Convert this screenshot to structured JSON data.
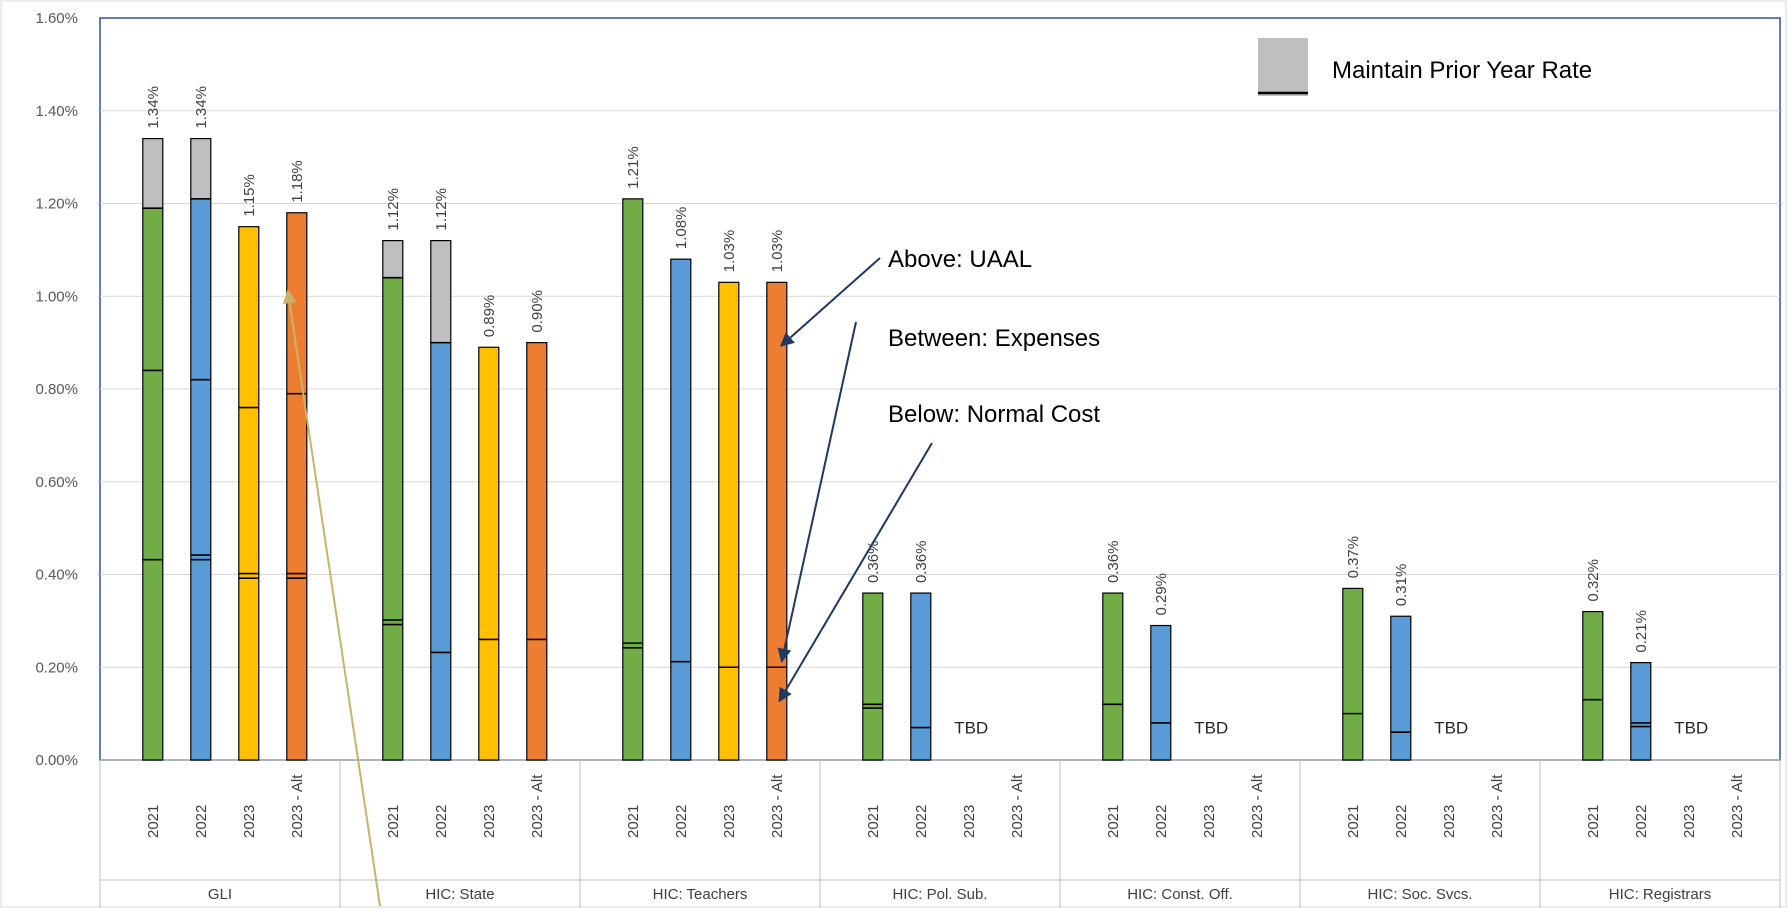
{
  "chart_data": {
    "type": "bar",
    "stacked": true,
    "ylim": [
      0,
      0.016
    ],
    "yticks": [
      "0.00%",
      "0.20%",
      "0.40%",
      "0.60%",
      "0.80%",
      "1.00%",
      "1.20%",
      "1.40%",
      "1.60%"
    ],
    "ytick_values": [
      0,
      0.002,
      0.004,
      0.006,
      0.008,
      0.01,
      0.012,
      0.014,
      0.016
    ],
    "grid": true,
    "legend": {
      "label": "Maintain Prior Year Rate",
      "position": "top-right"
    },
    "colors": {
      "2021": "#70ad47",
      "2022": "#5b9bd5",
      "2023": "#ffc000",
      "2023 - Alt": "#ed7d31",
      "maintain": "#bfbfbf",
      "axis": "#2f5597",
      "arrow": "#1f3864",
      "arrow_gold": "#c9b36a"
    },
    "groups": [
      {
        "name": "GLI",
        "bars": [
          {
            "x": "2021",
            "total": 0.0134,
            "colored_top": 0.0119,
            "lines": [
              0.00432,
              0.0084,
              0.0119
            ],
            "label": "1.34%"
          },
          {
            "x": "2022",
            "total": 0.0134,
            "colored_top": 0.0121,
            "lines": [
              0.00432,
              0.00442,
              0.0082,
              0.0121
            ],
            "label": "1.34%"
          },
          {
            "x": "2023",
            "total": 0.0115,
            "colored_top": 0.0115,
            "lines": [
              0.00392,
              0.00402,
              0.0076
            ],
            "label": "1.15%"
          },
          {
            "x": "2023 - Alt",
            "total": 0.0118,
            "colored_top": 0.0118,
            "lines": [
              0.00392,
              0.00402,
              0.0079
            ],
            "label": "1.18%"
          }
        ]
      },
      {
        "name": "HIC: State",
        "bars": [
          {
            "x": "2021",
            "total": 0.0112,
            "colored_top": 0.0104,
            "lines": [
              0.00292,
              0.00302,
              0.0104
            ],
            "label": "1.12%"
          },
          {
            "x": "2022",
            "total": 0.0112,
            "colored_top": 0.009,
            "lines": [
              0.00232,
              0.009
            ],
            "label": "1.12%"
          },
          {
            "x": "2023",
            "total": 0.0089,
            "colored_top": 0.0089,
            "lines": [
              0.0026
            ],
            "label": "0.89%"
          },
          {
            "x": "2023 - Alt",
            "total": 0.009,
            "colored_top": 0.009,
            "lines": [
              0.0026
            ],
            "label": "0.90%"
          }
        ]
      },
      {
        "name": "HIC: Teachers",
        "bars": [
          {
            "x": "2021",
            "total": 0.0121,
            "colored_top": 0.0121,
            "lines": [
              0.00242,
              0.00252
            ],
            "label": "1.21%"
          },
          {
            "x": "2022",
            "total": 0.0108,
            "colored_top": 0.0108,
            "lines": [
              0.00212
            ],
            "label": "1.08%"
          },
          {
            "x": "2023",
            "total": 0.0103,
            "colored_top": 0.0103,
            "lines": [
              0.002
            ],
            "label": "1.03%"
          },
          {
            "x": "2023 - Alt",
            "total": 0.0103,
            "colored_top": 0.0103,
            "lines": [
              0.002
            ],
            "label": "1.03%"
          }
        ]
      },
      {
        "name": "HIC: Pol. Sub.",
        "bars": [
          {
            "x": "2021",
            "total": 0.0036,
            "colored_top": 0.0036,
            "lines": [
              0.00112,
              0.0012
            ],
            "label": "0.36%"
          },
          {
            "x": "2022",
            "total": 0.0036,
            "colored_top": 0.0036,
            "lines": [
              0.0007
            ],
            "label": "0.36%"
          },
          {
            "x": "2023",
            "total": null,
            "label": ""
          },
          {
            "x": "2023 - Alt",
            "total": null,
            "label": ""
          }
        ],
        "tbd": "TBD"
      },
      {
        "name": "HIC: Const. Off.",
        "bars": [
          {
            "x": "2021",
            "total": 0.0036,
            "colored_top": 0.0036,
            "lines": [
              0.0012
            ],
            "label": "0.36%"
          },
          {
            "x": "2022",
            "total": 0.0029,
            "colored_top": 0.0029,
            "lines": [
              0.0008
            ],
            "label": "0.29%"
          },
          {
            "x": "2023",
            "total": null,
            "label": ""
          },
          {
            "x": "2023 - Alt",
            "total": null,
            "label": ""
          }
        ],
        "tbd": "TBD"
      },
      {
        "name": "HIC: Soc. Svcs.",
        "bars": [
          {
            "x": "2021",
            "total": 0.0037,
            "colored_top": 0.0037,
            "lines": [
              0.001
            ],
            "label": "0.37%"
          },
          {
            "x": "2022",
            "total": 0.0031,
            "colored_top": 0.0031,
            "lines": [
              0.0006
            ],
            "label": "0.31%"
          },
          {
            "x": "2023",
            "total": null,
            "label": ""
          },
          {
            "x": "2023 - Alt",
            "total": null,
            "label": ""
          }
        ],
        "tbd": "TBD"
      },
      {
        "name": "HIC: Registrars",
        "bars": [
          {
            "x": "2021",
            "total": 0.0032,
            "colored_top": 0.0032,
            "lines": [
              0.0013
            ],
            "label": "0.32%"
          },
          {
            "x": "2022",
            "total": 0.0021,
            "colored_top": 0.0021,
            "lines": [
              0.00072,
              0.0008
            ],
            "label": "0.21%"
          },
          {
            "x": "2023",
            "total": null,
            "label": ""
          },
          {
            "x": "2023 - Alt",
            "total": null,
            "label": ""
          }
        ],
        "tbd": "TBD"
      }
    ],
    "annotations": [
      "Above: UAAL",
      "Between: Expenses",
      "Below: Normal Cost"
    ]
  }
}
